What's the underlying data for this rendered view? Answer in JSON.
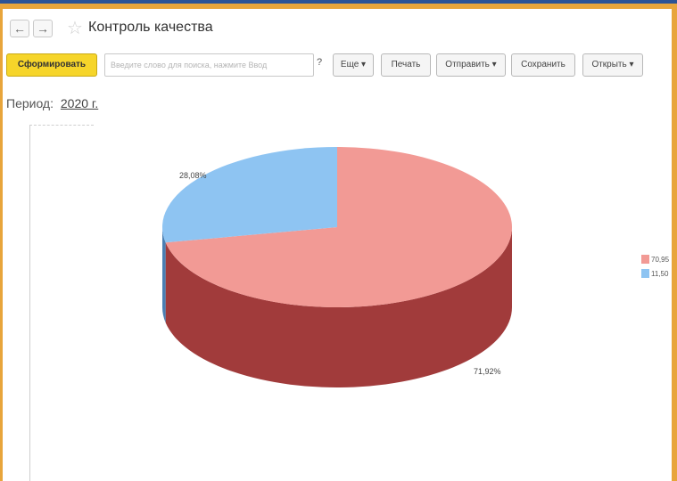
{
  "window": {
    "title": "Контроль качества",
    "back_icon": "←",
    "forward_icon": "→",
    "favorite_icon": "☆"
  },
  "toolbar": {
    "generate_label": "Сформировать",
    "search_placeholder": "Введите слово для поиска, нажмите Ввод",
    "help_label": "?",
    "more_label": "Еще ▾",
    "print_label": "Печать",
    "send_label": "Отправить ▾",
    "save_label": "Сохранить",
    "open_label": "Открыть ▾"
  },
  "period": {
    "label": "Период:",
    "value": "2020 г."
  },
  "chart_data": {
    "type": "pie",
    "title": "",
    "slices": [
      {
        "label": "71,92%",
        "value": 71.92,
        "legend": "70,95",
        "color": "#f29a95",
        "side_color": "#a13b3b"
      },
      {
        "label": "28,08%",
        "value": 28.08,
        "legend": "11,50",
        "color": "#8ec4f2",
        "side_color": "#4a7fb3"
      }
    ],
    "legend_position": "right"
  }
}
